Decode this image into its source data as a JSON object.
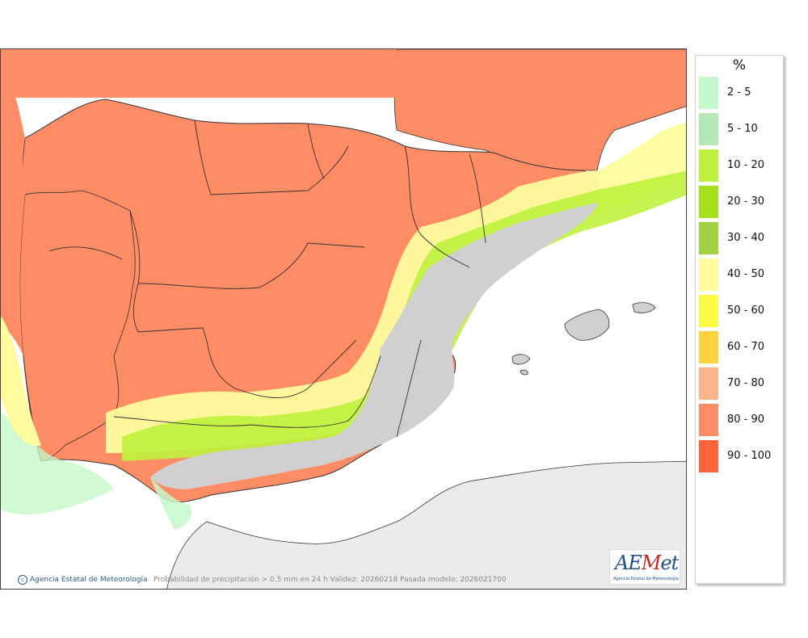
{
  "map": {
    "caption": "Probabilidad de precipitación > 0.5 mm en 24 h Validez: 20260218 Pasada modelo: 2026021700",
    "credit": "Agencia Estatal de Meteorología",
    "credit_icon": "copyright-icon",
    "colors": {
      "sea": "#ffffff",
      "outside_land": "#ebebeb",
      "shaded_relief": "#d0d0d0",
      "border": "#333333"
    }
  },
  "logo": {
    "a": "A",
    "e": "E",
    "m": "M",
    "et": "et",
    "subtitle": "Agencia Estatal de Meteorología"
  },
  "legend": {
    "unit": "%",
    "items": [
      {
        "label": "2 - 5",
        "color": "#c4f7c9"
      },
      {
        "label": "5 - 10",
        "color": "#b4e8b8"
      },
      {
        "label": "10 - 20",
        "color": "#bff23e"
      },
      {
        "label": "20 - 30",
        "color": "#a6e01a"
      },
      {
        "label": "30 - 40",
        "color": "#a0d044"
      },
      {
        "label": "40 - 50",
        "color": "#fefc9e"
      },
      {
        "label": "50 - 60",
        "color": "#fdfb44"
      },
      {
        "label": "60 - 70",
        "color": "#fed23c"
      },
      {
        "label": "70 - 80",
        "color": "#feb488"
      },
      {
        "label": "80 - 90",
        "color": "#fe8c64"
      },
      {
        "label": "90 - 100",
        "color": "#fe643c"
      }
    ]
  }
}
